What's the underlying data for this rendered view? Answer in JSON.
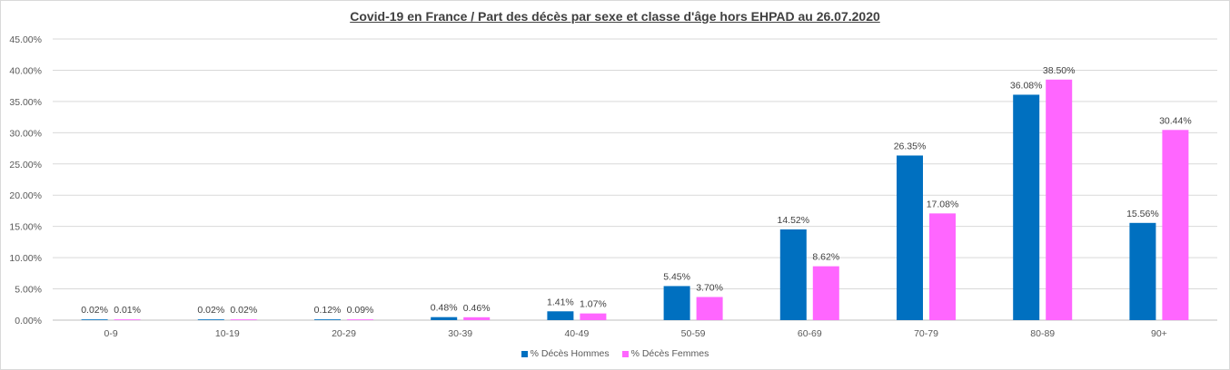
{
  "chart_data": {
    "type": "bar",
    "title": "Covid-19 en France / Part des décès par sexe et classe d'âge hors EHPAD au 26.07.2020",
    "xlabel": "",
    "ylabel": "",
    "ylim": [
      0,
      45
    ],
    "yticks": [
      "0.00%",
      "5.00%",
      "10.00%",
      "15.00%",
      "20.00%",
      "25.00%",
      "30.00%",
      "35.00%",
      "40.00%",
      "45.00%"
    ],
    "categories": [
      "0-9",
      "10-19",
      "20-29",
      "30-39",
      "40-49",
      "50-59",
      "60-69",
      "70-79",
      "80-89",
      "90+"
    ],
    "series": [
      {
        "name": "% Décès Hommes",
        "color": "#0070c0",
        "values": [
          0.02,
          0.02,
          0.12,
          0.48,
          1.41,
          5.45,
          14.52,
          26.35,
          36.08,
          15.56
        ],
        "labels": [
          "0.02%",
          "0.02%",
          "0.12%",
          "0.48%",
          "1.41%",
          "5.45%",
          "14.52%",
          "26.35%",
          "36.08%",
          "15.56%"
        ]
      },
      {
        "name": "% Décès Femmes",
        "color": "#ff66ff",
        "values": [
          0.01,
          0.02,
          0.09,
          0.46,
          1.07,
          3.7,
          8.62,
          17.08,
          38.5,
          30.44
        ],
        "labels": [
          "0.01%",
          "0.02%",
          "0.09%",
          "0.46%",
          "1.07%",
          "3.70%",
          "8.62%",
          "17.08%",
          "38.50%",
          "30.44%"
        ]
      }
    ],
    "grid": true,
    "legend": "bottom"
  }
}
